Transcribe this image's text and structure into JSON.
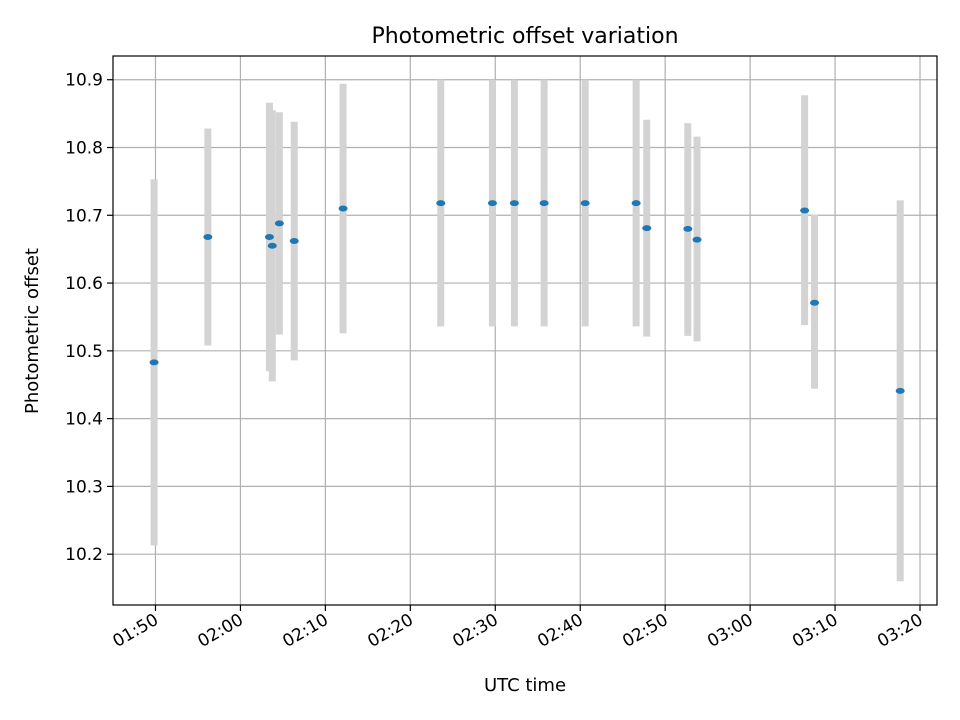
{
  "chart_data": {
    "type": "scatter",
    "title": "Photometric offset variation",
    "xlabel": "UTC time",
    "ylabel": "Photometric offset",
    "grid": true,
    "legend": "none",
    "xlim": [
      "01:45",
      "03:22"
    ],
    "ylim": [
      10.125,
      10.935
    ],
    "x_ticks": [
      "01:50",
      "02:00",
      "02:10",
      "02:20",
      "02:30",
      "02:40",
      "02:50",
      "03:00",
      "03:10",
      "03:20"
    ],
    "y_ticks": [
      10.2,
      10.3,
      10.4,
      10.5,
      10.6,
      10.7,
      10.8,
      10.9
    ],
    "y_tick_labels": [
      "10.2",
      "10.3",
      "10.4",
      "10.5",
      "10.6",
      "10.7",
      "10.8",
      "10.9"
    ],
    "colors": {
      "marker": "#1f77b4",
      "errorbar": "#d3d3d3",
      "grid": "#b0b0b0"
    },
    "points": [
      {
        "x": "01:49:50",
        "y": 10.483,
        "ylow": 10.213,
        "yhigh": 10.753
      },
      {
        "x": "01:56:10",
        "y": 10.668,
        "ylow": 10.508,
        "yhigh": 10.828
      },
      {
        "x": "02:03:25",
        "y": 10.668,
        "ylow": 10.47,
        "yhigh": 10.866
      },
      {
        "x": "02:03:45",
        "y": 10.655,
        "ylow": 10.455,
        "yhigh": 10.855
      },
      {
        "x": "02:04:35",
        "y": 10.688,
        "ylow": 10.524,
        "yhigh": 10.852
      },
      {
        "x": "02:06:20",
        "y": 10.662,
        "ylow": 10.486,
        "yhigh": 10.838
      },
      {
        "x": "02:12:05",
        "y": 10.71,
        "ylow": 10.526,
        "yhigh": 10.894
      },
      {
        "x": "02:23:35",
        "y": 10.718,
        "ylow": 10.536,
        "yhigh": 10.9
      },
      {
        "x": "02:29:40",
        "y": 10.718,
        "ylow": 10.536,
        "yhigh": 10.9
      },
      {
        "x": "02:32:15",
        "y": 10.718,
        "ylow": 10.536,
        "yhigh": 10.9
      },
      {
        "x": "02:35:45",
        "y": 10.718,
        "ylow": 10.536,
        "yhigh": 10.9
      },
      {
        "x": "02:40:35",
        "y": 10.718,
        "ylow": 10.536,
        "yhigh": 10.9
      },
      {
        "x": "02:46:35",
        "y": 10.718,
        "ylow": 10.536,
        "yhigh": 10.9
      },
      {
        "x": "02:47:50",
        "y": 10.681,
        "ylow": 10.521,
        "yhigh": 10.841
      },
      {
        "x": "02:52:40",
        "y": 10.68,
        "ylow": 10.522,
        "yhigh": 10.836
      },
      {
        "x": "02:53:45",
        "y": 10.664,
        "ylow": 10.514,
        "yhigh": 10.816
      },
      {
        "x": "03:06:25",
        "y": 10.707,
        "ylow": 10.538,
        "yhigh": 10.877
      },
      {
        "x": "03:07:35",
        "y": 10.571,
        "ylow": 10.444,
        "yhigh": 10.701
      },
      {
        "x": "03:17:40",
        "y": 10.441,
        "ylow": 10.16,
        "yhigh": 10.722
      }
    ]
  }
}
